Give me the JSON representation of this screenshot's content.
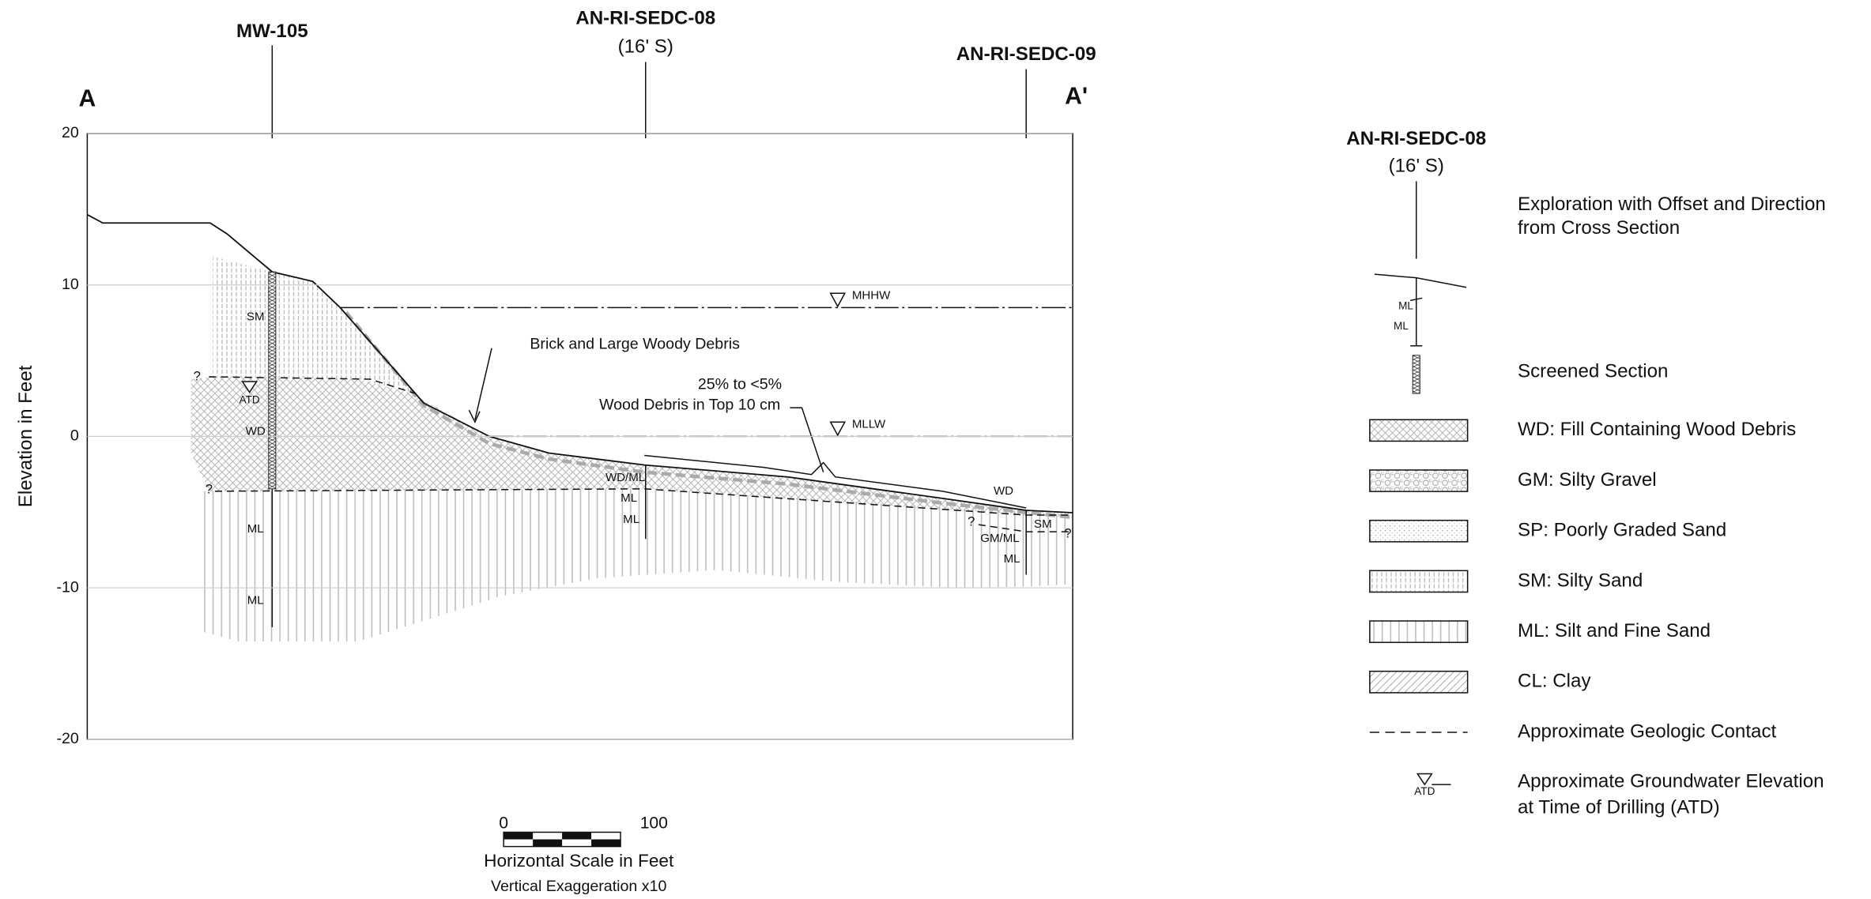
{
  "section": {
    "start_label": "A",
    "end_label": "A'",
    "y_axis_label": "Elevation in Feet",
    "ylim": [
      -20,
      20
    ],
    "yticks": [
      20,
      10,
      0,
      -10,
      -20
    ]
  },
  "explorations": [
    {
      "name": "MW-105"
    },
    {
      "name": "AN-RI-SEDC-08",
      "offset": "(16' S)"
    },
    {
      "name": "AN-RI-SEDC-09"
    }
  ],
  "water_levels": [
    "MHHW",
    "MLLW"
  ],
  "annotations": [
    "Brick and Large Woody Debris",
    "25% to <5%",
    "Wood Debris in Top 10 cm"
  ],
  "soil_labels": [
    "SM",
    "ATD",
    "WD",
    "ML",
    "ML",
    "WD/ML",
    "ML",
    "ML",
    "WD",
    "SM",
    "GM/ML",
    "ML"
  ],
  "contact_marks": [
    "?",
    "?",
    "?",
    "?"
  ],
  "scale": {
    "start": "0",
    "end": "100",
    "title": "Horizontal Scale in Feet",
    "note": "Vertical Exaggeration x10"
  },
  "legend": {
    "exploration_name": "AN-RI-SEDC-08",
    "exploration_offset": "(16' S)",
    "exploration_text": [
      "Exploration with Offset and Direction",
      "from Cross Section"
    ],
    "sample_labels": [
      "ML",
      "ML"
    ],
    "screened": "Screened Section",
    "items": [
      "WD: Fill Containing Wood Debris",
      "GM: Silty Gravel",
      "SP: Poorly Graded Sand",
      "SM: Silty Sand",
      "ML: Silt and Fine Sand",
      "CL: Clay",
      "Approximate Geologic Contact"
    ],
    "groundwater_symbol": "ATD",
    "groundwater_text": [
      "Approximate Groundwater Elevation",
      "at Time of Drilling (ATD)"
    ]
  }
}
